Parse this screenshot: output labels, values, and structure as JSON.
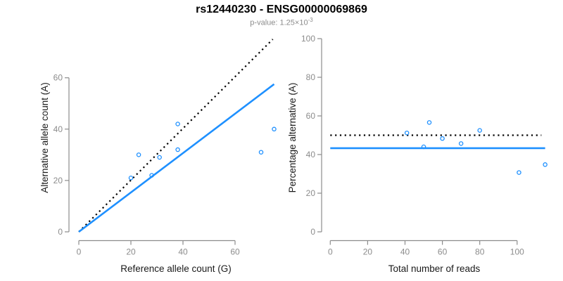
{
  "header": {
    "title": "rs12440230 - ENSG00000069869",
    "subtitle_prefix": "p-value: 1.25×10",
    "subtitle_exponent": "-3"
  },
  "colors": {
    "accent_blue": "#1E90FF",
    "axis_gray": "#8c8c8c",
    "tick_label_gray": "#8c8c8c",
    "axis_title_black": "#1a1a1a",
    "reference_line_black": "#000000"
  },
  "chart_data": [
    {
      "type": "scatter",
      "panel": "left",
      "xlabel": "Reference allele count (G)",
      "ylabel": "Alternative allele count (A)",
      "xticks": [
        0,
        20,
        40,
        60
      ],
      "yticks": [
        0,
        20,
        40,
        60
      ],
      "xlim": [
        0,
        78
      ],
      "ylim": [
        0,
        78
      ],
      "grid": false,
      "marker": "open-circle",
      "points": [
        [
          20,
          21
        ],
        [
          23,
          30
        ],
        [
          28,
          22
        ],
        [
          31,
          29
        ],
        [
          38,
          32
        ],
        [
          38,
          42
        ],
        [
          70,
          31
        ],
        [
          75,
          40
        ]
      ],
      "lines": [
        {
          "name": "identity-line",
          "style": "dotted",
          "color": "#000000",
          "x1": 0,
          "y1": 0,
          "x2": 74.5,
          "y2": 75
        },
        {
          "name": "fit-line",
          "style": "solid",
          "color": "#1E90FF",
          "x1": 0,
          "y1": 0,
          "x2": 75,
          "y2": 57.5
        }
      ]
    },
    {
      "type": "scatter",
      "panel": "right",
      "xlabel": "Total number of reads",
      "ylabel": "Percentage alternative (A)",
      "xticks": [
        0,
        20,
        40,
        60,
        80,
        100
      ],
      "yticks": [
        0,
        20,
        40,
        60,
        80,
        100
      ],
      "xlim": [
        0,
        115
      ],
      "ylim": [
        0,
        100
      ],
      "grid": false,
      "marker": "open-circle",
      "points": [
        [
          41,
          51.2
        ],
        [
          50,
          44
        ],
        [
          53,
          56.6
        ],
        [
          60,
          48.3
        ],
        [
          70,
          45.7
        ],
        [
          80,
          52.5
        ],
        [
          101,
          30.7
        ],
        [
          115,
          34.8
        ]
      ],
      "lines": [
        {
          "name": "expected-50pct-line",
          "style": "dotted",
          "color": "#000000",
          "x1": 0,
          "y1": 50,
          "x2": 113,
          "y2": 50
        },
        {
          "name": "mean-percentage-line",
          "style": "solid",
          "color": "#1E90FF",
          "x1": 0,
          "y1": 43.3,
          "x2": 115,
          "y2": 43.3
        }
      ]
    }
  ]
}
